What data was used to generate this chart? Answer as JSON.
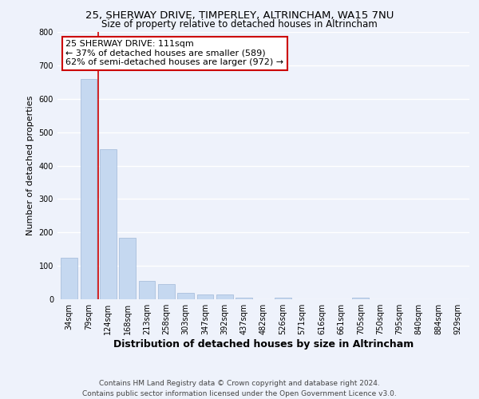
{
  "title1": "25, SHERWAY DRIVE, TIMPERLEY, ALTRINCHAM, WA15 7NU",
  "title2": "Size of property relative to detached houses in Altrincham",
  "xlabel": "Distribution of detached houses by size in Altrincham",
  "ylabel": "Number of detached properties",
  "categories": [
    "34sqm",
    "79sqm",
    "124sqm",
    "168sqm",
    "213sqm",
    "258sqm",
    "303sqm",
    "347sqm",
    "392sqm",
    "437sqm",
    "482sqm",
    "526sqm",
    "571sqm",
    "616sqm",
    "661sqm",
    "705sqm",
    "750sqm",
    "795sqm",
    "840sqm",
    "884sqm",
    "929sqm"
  ],
  "values": [
    125,
    660,
    450,
    185,
    55,
    45,
    20,
    15,
    15,
    5,
    0,
    5,
    0,
    0,
    0,
    5,
    0,
    0,
    0,
    0,
    0
  ],
  "bar_color": "#c5d8f0",
  "bar_edge_color": "#a0b8d8",
  "vline_x_idx": 1.5,
  "vline_color": "#cc0000",
  "annotation_text": "25 SHERWAY DRIVE: 111sqm\n← 37% of detached houses are smaller (589)\n62% of semi-detached houses are larger (972) →",
  "annotation_box_color": "#ffffff",
  "annotation_box_edge": "#cc0000",
  "ylim": [
    0,
    800
  ],
  "yticks": [
    0,
    100,
    200,
    300,
    400,
    500,
    600,
    700,
    800
  ],
  "footer1": "Contains HM Land Registry data © Crown copyright and database right 2024.",
  "footer2": "Contains public sector information licensed under the Open Government Licence v3.0.",
  "bg_color": "#eef2fb",
  "plot_bg_color": "#eef2fb",
  "grid_color": "#ffffff",
  "title1_fontsize": 9.5,
  "title2_fontsize": 8.5,
  "xlabel_fontsize": 9,
  "ylabel_fontsize": 8,
  "tick_fontsize": 7,
  "annotation_fontsize": 8,
  "footer_fontsize": 6.5
}
